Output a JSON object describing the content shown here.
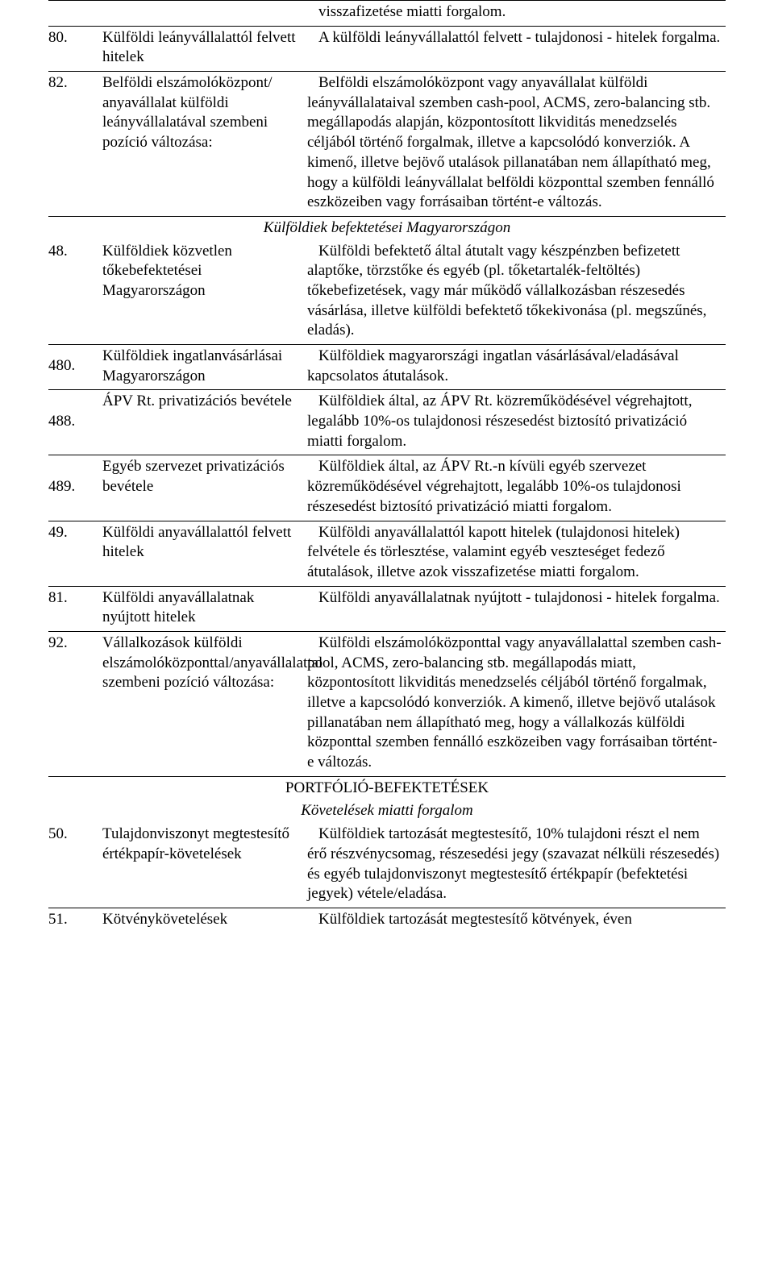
{
  "rows": [
    {
      "num": "",
      "title": "",
      "desc": "visszafizetése miatti forgalom.",
      "rule": true,
      "noindent_title": false
    },
    {
      "num": "80.",
      "title": "Külföldi leányvállalattól felvett hitelek",
      "desc": "A külföldi leányvállalattól felvett - tulajdonosi - hitelek forgalma.",
      "rule": true
    },
    {
      "num": "82.",
      "title": "Belföldi elszámolóközpont/ anyavállalat külföldi leányvállalatával szembeni pozíció változása:",
      "desc": "Belföldi elszámolóközpont vagy anyavállalat külföldi leányvállalataival szemben cash-pool, ACMS, zero-balancing stb. megállapodás alapján, központosított likviditás menedzselés céljából történő forgalmak, illetve a kapcsolódó konverziók. A kimenő, illetve bejövő utalások pillanatában nem állapítható meg, hogy a külföldi leányvállalat belföldi központtal szemben fennálló eszközeiben vagy forrásaiban történt-e változás.",
      "rule": true
    },
    {
      "section": "Külföldiek befektetései Magyarországon",
      "italic": true,
      "rule": true
    },
    {
      "num": "48.",
      "title": "Külföldiek közvetlen tőkebefektetései Magyarországon",
      "desc": "Külföldi befektető által átutalt vagy készpénzben befizetett alaptőke, törzstőke és egyéb (pl. tőketartalék-feltöltés) tőkebefizetések, vagy már működő vállalkozásban részesedés vásárlása, illetve külföldi befektető tőkekivonása (pl. megszűnés, eladás).",
      "rule": false
    },
    {
      "num": "480.",
      "title": "Külföldiek ingatlanvásárlásai Magyarországon",
      "desc": "Külföldiek magyarországi ingatlan vásárlásával/eladásával kapcsolatos átutalások.",
      "rule": true,
      "title_noindent": true
    },
    {
      "num": "488.",
      "title": "ÁPV Rt. privatizációs bevétele",
      "desc": "Külföldiek által, az ÁPV Rt. közreműködésével végrehajtott, legalább 10%-os tulajdonosi részesedést biztosító privatizáció miatti forgalom.",
      "rule": true,
      "title_noindent": true
    },
    {
      "num": "489.",
      "title": "Egyéb szervezet privatizációs bevétele",
      "desc": "Külföldiek által, az ÁPV Rt.-n kívüli egyéb szervezet közreműködésével végrehajtott, legalább 10%-os tulajdonosi részesedést biztosító privatizáció miatti forgalom.",
      "rule": true,
      "title_noindent": true
    },
    {
      "num": "49.",
      "title": "Külföldi anyavállalattól felvett hitelek",
      "desc": "Külföldi anyavállalattól kapott hitelek (tulajdonosi hitelek) felvétele és törlesztése, valamint egyéb veszteséget fedező átutalások, illetve azok visszafizetése miatti forgalom.",
      "rule": true
    },
    {
      "num": "81.",
      "title": "Külföldi anyavállalatnak nyújtott hitelek",
      "desc": "Külföldi anyavállalatnak nyújtott - tulajdonosi - hitelek forgalma.",
      "rule": true
    },
    {
      "num": "92.",
      "title": "Vállalkozások külföldi elszámolóközponttal/anyavállalattal szembeni pozíció változása:",
      "desc": "Külföldi elszámolóközponttal vagy anyavállalattal szemben cash-pool, ACMS, zero-balancing stb. megállapodás miatt, központosított likviditás menedzselés céljából történő forgalmak, illetve a kapcsolódó konverziók. A kimenő, illetve bejövő utalások pillanatában nem állapítható meg, hogy a vállalkozás külföldi központtal szemben fennálló eszközeiben vagy forrásaiban történt-e változás.",
      "rule": true
    },
    {
      "section": "PORTFÓLIÓ-BEFEKTETÉSEK",
      "italic": false,
      "rule": true
    },
    {
      "section": "Követelések miatti forgalom",
      "italic": true,
      "rule": false
    },
    {
      "num": "50.",
      "title": "Tulajdonviszonyt megtestesítő értékpapír-követelések",
      "desc": "Külföldiek tartozását megtestesítő, 10% tulajdoni részt el nem érő részvénycsomag, részesedési jegy (szavazat nélküli részesedés) és egyéb tulajdonviszonyt megtestesítő értékpapír (befektetési jegyek) vétele/eladása.",
      "rule": false
    },
    {
      "num": "51.",
      "title": "Kötvénykövetelések",
      "desc": "Külföldiek tartozását megtestesítő kötvények, éven",
      "rule": true
    }
  ]
}
